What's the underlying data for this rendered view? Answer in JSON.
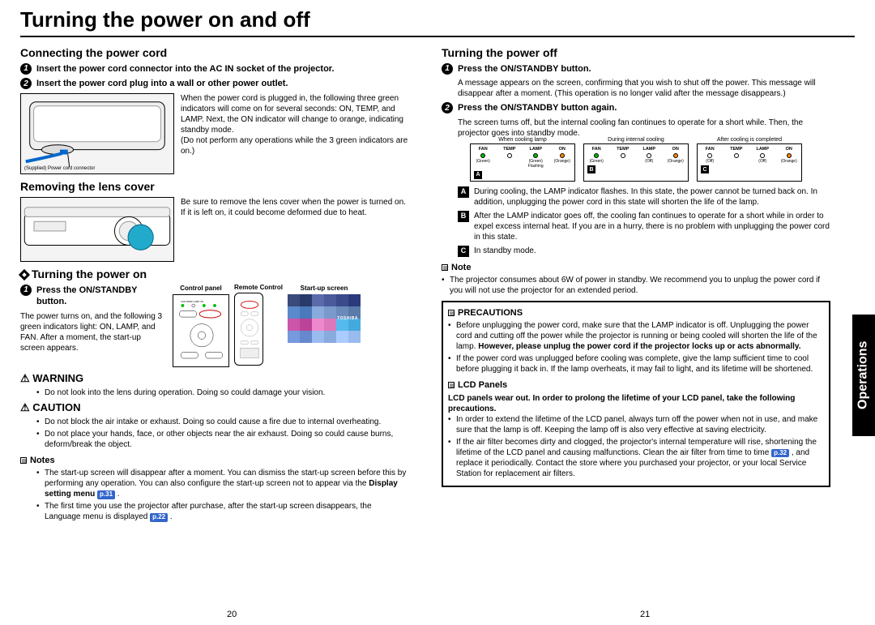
{
  "title": "Turning the power on and off",
  "side_tab": "Operations",
  "page_left": "20",
  "page_right": "21",
  "pref1": "p.31",
  "pref2": "p.22",
  "pref3": "p.32",
  "left": {
    "h_connect": "Connecting the power cord",
    "s1": "Insert the power cord connector into the AC IN socket of the projector.",
    "s2": "Insert the power cord plug into a wall or other power outlet.",
    "connect_body": "When the power cord is plugged in, the following three green indicators will come on for several seconds: ON, TEMP, and LAMP. Next, the ON indicator will change to orange, indicating standby mode.",
    "connect_note": "(Do not perform any operations while the 3 green indicators are on.)",
    "cord_caption": "(Supplied) Power cord connector",
    "h_remove": "Removing the lens cover",
    "remove_body": "Be sure to remove the lens cover when the power is turned on. If it is left on, it could become deformed due to heat.",
    "h_on": "Turning the power on",
    "on_s1": "Press the ON/STANDBY button.",
    "on_body": "The power turns on, and the following 3 green indicators light: ON, LAMP, and FAN. After a moment, the start-up screen appears.",
    "lbl_cp": "Control panel",
    "lbl_rc": "Remote Control",
    "lbl_su": "Start-up screen",
    "warn": "WARNING",
    "warn_li": "Do not look into the lens during operation. Doing so could damage your vision.",
    "caut": "CAUTION",
    "caut_li1": "Do not block the air intake or exhaust. Doing so could cause a fire due to internal overheating.",
    "caut_li2": "Do not place your hands, face, or other objects near the air exhaust. Doing so could cause burns, deform/break the object.",
    "notes": "Notes",
    "note1a": "The start-up screen will disappear after a moment. You can dismiss the start-up screen before this by performing any operation. You can also configure the start-up screen not to appear via the ",
    "note1b": "Display setting menu ",
    "note2a": "The first time you use the projector after purchase, after the start-up screen disappears, the Language menu is displayed "
  },
  "right": {
    "h_off": "Turning the power off",
    "s1": "Press the ON/STANDBY button.",
    "s1_body": "A message appears on the screen, confirming that you wish to shut off the power. This message will disappear after a moment. (This operation is no longer valid after the message disappears.)",
    "s2": "Press the ON/STANDBY button again.",
    "s2_body": "The screen turns off, but the internal cooling fan continues to operate for a short while. Then, the projector goes into standby mode.",
    "ind_t1": "When cooling lamp",
    "ind_t2": "During internal cooling",
    "ind_t3": "After cooling is completed",
    "led_fan": "FAN",
    "led_temp": "TEMP",
    "led_lamp": "LAMP",
    "led_on": "ON",
    "g": "(Green)",
    "o": "(Orange)",
    "off": "(Off)",
    "fl": "Flashing",
    "A_body": "During cooling, the LAMP indicator flashes. In this state, the power cannot be turned back on. In addition, unplugging the power cord in this state will shorten the life of the lamp.",
    "B_body": "After the LAMP indicator goes off, the cooling fan continues to operate for a short while in order to expel excess internal heat. If you are in a hurry, there is no problem with unplugging the power cord in this state.",
    "C_body": "In standby mode.",
    "note_h": "Note",
    "note_li": "The projector consumes about 6W of power in standby. We recommend you to unplug the power cord if you will not use the projector for an extended period.",
    "prec_h": "PRECAUTIONS",
    "prec_li1a": "Before unplugging the power cord, make sure that the LAMP indicator is off. Unplugging the power cord and cutting off the power while the projector is running or being cooled will shorten the life of the lamp. ",
    "prec_li1b": "However, please unplug the power cord if the projector locks up or acts abnormally.",
    "prec_li2": "If the power cord was unplugged before cooling was complete, give the lamp sufficient time to cool before plugging it back in. If the lamp overheats, it may fail to light, and its lifetime will be shortened.",
    "lcd_h": "LCD Panels",
    "lcd_intro": "LCD panels wear out. In order to prolong the lifetime of your LCD panel, take the following precautions.",
    "lcd_li1": "In order to extend the lifetime of the LCD panel, always turn off the power when not in use, and make sure that the lamp is off. Keeping the lamp off is also very effective at saving electricity.",
    "lcd_li2a": "If the air filter becomes dirty and clogged, the projector's internal temperature will rise, shortening the lifetime of the LCD panel and causing malfunctions. Clean the air filter from time to time ",
    "lcd_li2b": ", and replace it periodically. Contact the store where you purchased your projector, or your local Service Station for replacement air filters."
  },
  "startup_colors": [
    "#3a4a7a",
    "#2a3a6a",
    "#5a6aaa",
    "#4a5a9a",
    "#3a4a8a",
    "#2a3a7a",
    "#5a8acc",
    "#4a7abb",
    "#8aaadd",
    "#7a9acc",
    "#6a8abb",
    "#5a7aaa",
    "#cc55aa",
    "#bb4499",
    "#ee88cc",
    "#dd77bb",
    "#55bbee",
    "#44aadd",
    "#7799dd",
    "#6688cc",
    "#99bbee",
    "#88aadd",
    "#aaccff",
    "#99bbee"
  ]
}
